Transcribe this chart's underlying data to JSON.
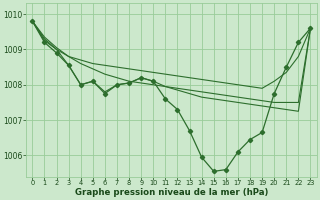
{
  "background_color": "#cce8cc",
  "grid_color": "#99cc99",
  "line_color": "#2d6e2d",
  "marker_color": "#2d6e2d",
  "text_color": "#1a4a1a",
  "xlabel": "Graphe pression niveau de la mer (hPa)",
  "ylim": [
    1005.4,
    1010.3
  ],
  "xlim": [
    -0.5,
    23.5
  ],
  "yticks": [
    1006,
    1007,
    1008,
    1009,
    1010
  ],
  "xticks": [
    0,
    1,
    2,
    3,
    4,
    5,
    6,
    7,
    8,
    9,
    10,
    11,
    12,
    13,
    14,
    15,
    16,
    17,
    18,
    19,
    20,
    21,
    22,
    23
  ],
  "series1_x": [
    0,
    1,
    2,
    3,
    4,
    5,
    6,
    7,
    8,
    9,
    10,
    11,
    12,
    13,
    14,
    15,
    16,
    17,
    18,
    19,
    20,
    21,
    22,
    23
  ],
  "series1_y": [
    1009.8,
    1009.35,
    1009.05,
    1008.8,
    1008.6,
    1008.45,
    1008.3,
    1008.2,
    1008.1,
    1008.05,
    1008.0,
    1007.95,
    1007.9,
    1007.85,
    1007.8,
    1007.75,
    1007.7,
    1007.65,
    1007.6,
    1007.55,
    1007.5,
    1007.5,
    1007.5,
    1009.6
  ],
  "series2_x": [
    0,
    1,
    2,
    3,
    4,
    5,
    6,
    7,
    8,
    9,
    10,
    11,
    12,
    13,
    14,
    15,
    16,
    17,
    18,
    19,
    20,
    21,
    22,
    23
  ],
  "series2_y": [
    1009.8,
    1009.3,
    1009.0,
    1008.55,
    1008.0,
    1008.1,
    1007.8,
    1008.0,
    1008.05,
    1008.2,
    1008.1,
    1007.95,
    1007.85,
    1007.75,
    1007.65,
    1007.6,
    1007.55,
    1007.5,
    1007.45,
    1007.4,
    1007.35,
    1007.3,
    1007.25,
    1009.6
  ],
  "series3_x": [
    0,
    1,
    2,
    3,
    4,
    5,
    6,
    7,
    8,
    9,
    10,
    11,
    12,
    13,
    14,
    15,
    16,
    17,
    18,
    19,
    20,
    21,
    22,
    23
  ],
  "series3_y": [
    1009.8,
    1009.2,
    1008.9,
    1008.55,
    1008.0,
    1008.1,
    1007.75,
    1008.0,
    1008.05,
    1008.2,
    1008.1,
    1007.6,
    1007.3,
    1006.7,
    1005.95,
    1005.55,
    1005.6,
    1006.1,
    1006.45,
    1006.65,
    1007.75,
    1008.5,
    1009.2,
    1009.6
  ],
  "series4_x": [
    0,
    1,
    2,
    3,
    4,
    5,
    6,
    7,
    8,
    9,
    10,
    11,
    12,
    13,
    14,
    15,
    16,
    17,
    18,
    19,
    20,
    21,
    22,
    23
  ],
  "series4_y": [
    1009.8,
    1009.25,
    1009.0,
    1008.8,
    1008.7,
    1008.6,
    1008.55,
    1008.5,
    1008.45,
    1008.4,
    1008.35,
    1008.3,
    1008.25,
    1008.2,
    1008.15,
    1008.1,
    1008.05,
    1008.0,
    1007.95,
    1007.9,
    1008.1,
    1008.35,
    1008.8,
    1009.6
  ]
}
